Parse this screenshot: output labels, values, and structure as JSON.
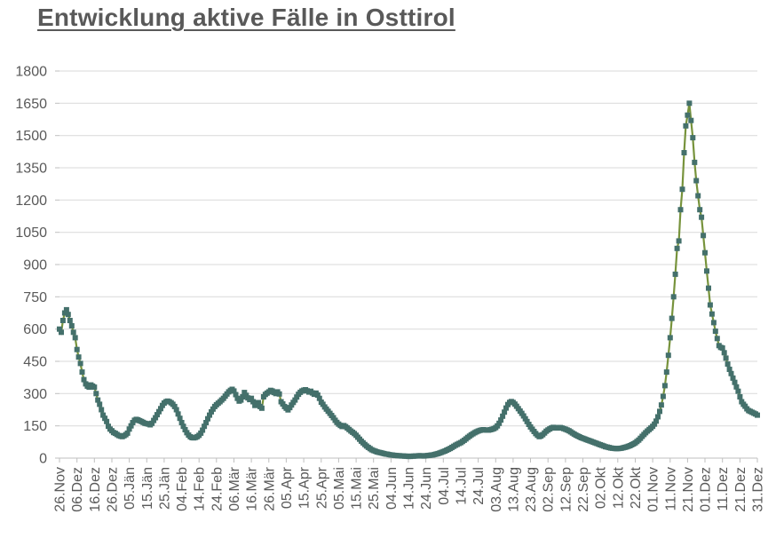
{
  "title": {
    "text": "Entwicklung aktive Fälle in Osttirol",
    "color": "#595959",
    "underline": true
  },
  "chart_data": {
    "type": "line",
    "title": "Entwicklung aktive Fälle in Osttirol",
    "xlabel": "",
    "ylabel": "",
    "ylim": [
      0,
      1800
    ],
    "y_step": 150,
    "y_tick_labels": [
      "0",
      "150",
      "300",
      "450",
      "600",
      "750",
      "900",
      "1050",
      "1200",
      "1350",
      "1500",
      "1650",
      "1800"
    ],
    "x_tick_labels": [
      "26.Nov",
      "06.Dez",
      "16.Dez",
      "26.Dez",
      "05.Jän",
      "15.Jän",
      "25.Jän",
      "04.Feb",
      "14.Feb",
      "24.Feb",
      "06.Mär",
      "16.Mär",
      "26.Mär",
      "05.Apr",
      "15.Apr",
      "25.Apr",
      "05.Mai",
      "15.Mai",
      "25.Mai",
      "04.Jun",
      "14.Jun",
      "24.Jun",
      "04.Jul",
      "14.Jul",
      "24.Jul",
      "03.Aug",
      "13.Aug",
      "23.Aug",
      "02.Sep",
      "12.Sep",
      "22.Sep",
      "02.Okt",
      "12.Okt",
      "22.Okt",
      "01.Nov",
      "11.Nov",
      "21.Nov",
      "01.Dez",
      "11.Dez",
      "21.Dez",
      "31.Dez"
    ],
    "x_points_per_tick": 10,
    "grid": true,
    "legend": false,
    "marker": "square",
    "line_color": "#77933C",
    "marker_color": "#44706B",
    "grid_color": "#D9D9D9",
    "axis_color": "#BFBFBF",
    "label_color": "#595959",
    "values": [
      600,
      585,
      640,
      675,
      690,
      668,
      640,
      615,
      585,
      560,
      505,
      470,
      440,
      400,
      365,
      345,
      335,
      330,
      340,
      335,
      330,
      300,
      270,
      250,
      225,
      200,
      185,
      170,
      148,
      135,
      127,
      119,
      115,
      110,
      105,
      102,
      100,
      104,
      109,
      116,
      135,
      150,
      165,
      176,
      180,
      178,
      174,
      170,
      166,
      162,
      160,
      158,
      155,
      162,
      175,
      188,
      202,
      216,
      230,
      245,
      256,
      262,
      265,
      262,
      257,
      250,
      240,
      225,
      205,
      185,
      165,
      148,
      132,
      118,
      107,
      99,
      95,
      94,
      96,
      100,
      106,
      116,
      130,
      148,
      165,
      183,
      200,
      215,
      228,
      240,
      248,
      255,
      262,
      270,
      278,
      288,
      298,
      308,
      315,
      320,
      312,
      295,
      278,
      265,
      270,
      285,
      305,
      292,
      280,
      272,
      278,
      262,
      245,
      252,
      258,
      240,
      232,
      285,
      296,
      302,
      308,
      315,
      312,
      305,
      300,
      308,
      298,
      262,
      252,
      240,
      232,
      224,
      235,
      247,
      259,
      270,
      284,
      297,
      306,
      312,
      316,
      318,
      313,
      307,
      311,
      303,
      297,
      302,
      293,
      278,
      260,
      250,
      238,
      228,
      218,
      208,
      198,
      188,
      176,
      166,
      158,
      152,
      147,
      151,
      146,
      140,
      133,
      126,
      120,
      114,
      106,
      97,
      88,
      79,
      71,
      63,
      56,
      50,
      44,
      39,
      35,
      32,
      29,
      27,
      25,
      23,
      21,
      19,
      18,
      16,
      15,
      14,
      13,
      12,
      11,
      11,
      10,
      10,
      9,
      9,
      8,
      8,
      9,
      9,
      10,
      10,
      11,
      11,
      10,
      10,
      11,
      12,
      13,
      14,
      15,
      17,
      19,
      21,
      24,
      27,
      30,
      33,
      37,
      41,
      45,
      50,
      55,
      60,
      64,
      68,
      72,
      77,
      83,
      89,
      96,
      102,
      108,
      113,
      118,
      122,
      126,
      129,
      131,
      132,
      131,
      130,
      130,
      132,
      134,
      137,
      142,
      150,
      162,
      177,
      195,
      214,
      233,
      249,
      259,
      263,
      259,
      251,
      241,
      230,
      219,
      208,
      196,
      183,
      170,
      157,
      145,
      134,
      124,
      114,
      106,
      100,
      103,
      109,
      117,
      125,
      131,
      136,
      140,
      143,
      142,
      140,
      141,
      142,
      140,
      137,
      134,
      131,
      127,
      122,
      117,
      112,
      107,
      103,
      99,
      95,
      92,
      89,
      86,
      83,
      80,
      77,
      74,
      71,
      68,
      65,
      62,
      59,
      56,
      53,
      51,
      49,
      47,
      46,
      45,
      44,
      44,
      45,
      46,
      48,
      50,
      52,
      55,
      58,
      62,
      66,
      71,
      77,
      84,
      92,
      101,
      110,
      118,
      126,
      133,
      140,
      148,
      158,
      172,
      192,
      217,
      247,
      287,
      337,
      400,
      478,
      560,
      650,
      750,
      855,
      975,
      1010,
      1155,
      1250,
      1420,
      1545,
      1595,
      1650,
      1570,
      1490,
      1375,
      1290,
      1220,
      1155,
      1120,
      1035,
      955,
      870,
      790,
      712,
      670,
      630,
      590,
      556,
      523,
      515,
      512,
      490,
      465,
      437,
      413,
      393,
      372,
      352,
      331,
      311,
      285,
      262,
      250,
      241,
      229,
      221,
      217,
      213,
      209,
      205,
      200
    ]
  }
}
